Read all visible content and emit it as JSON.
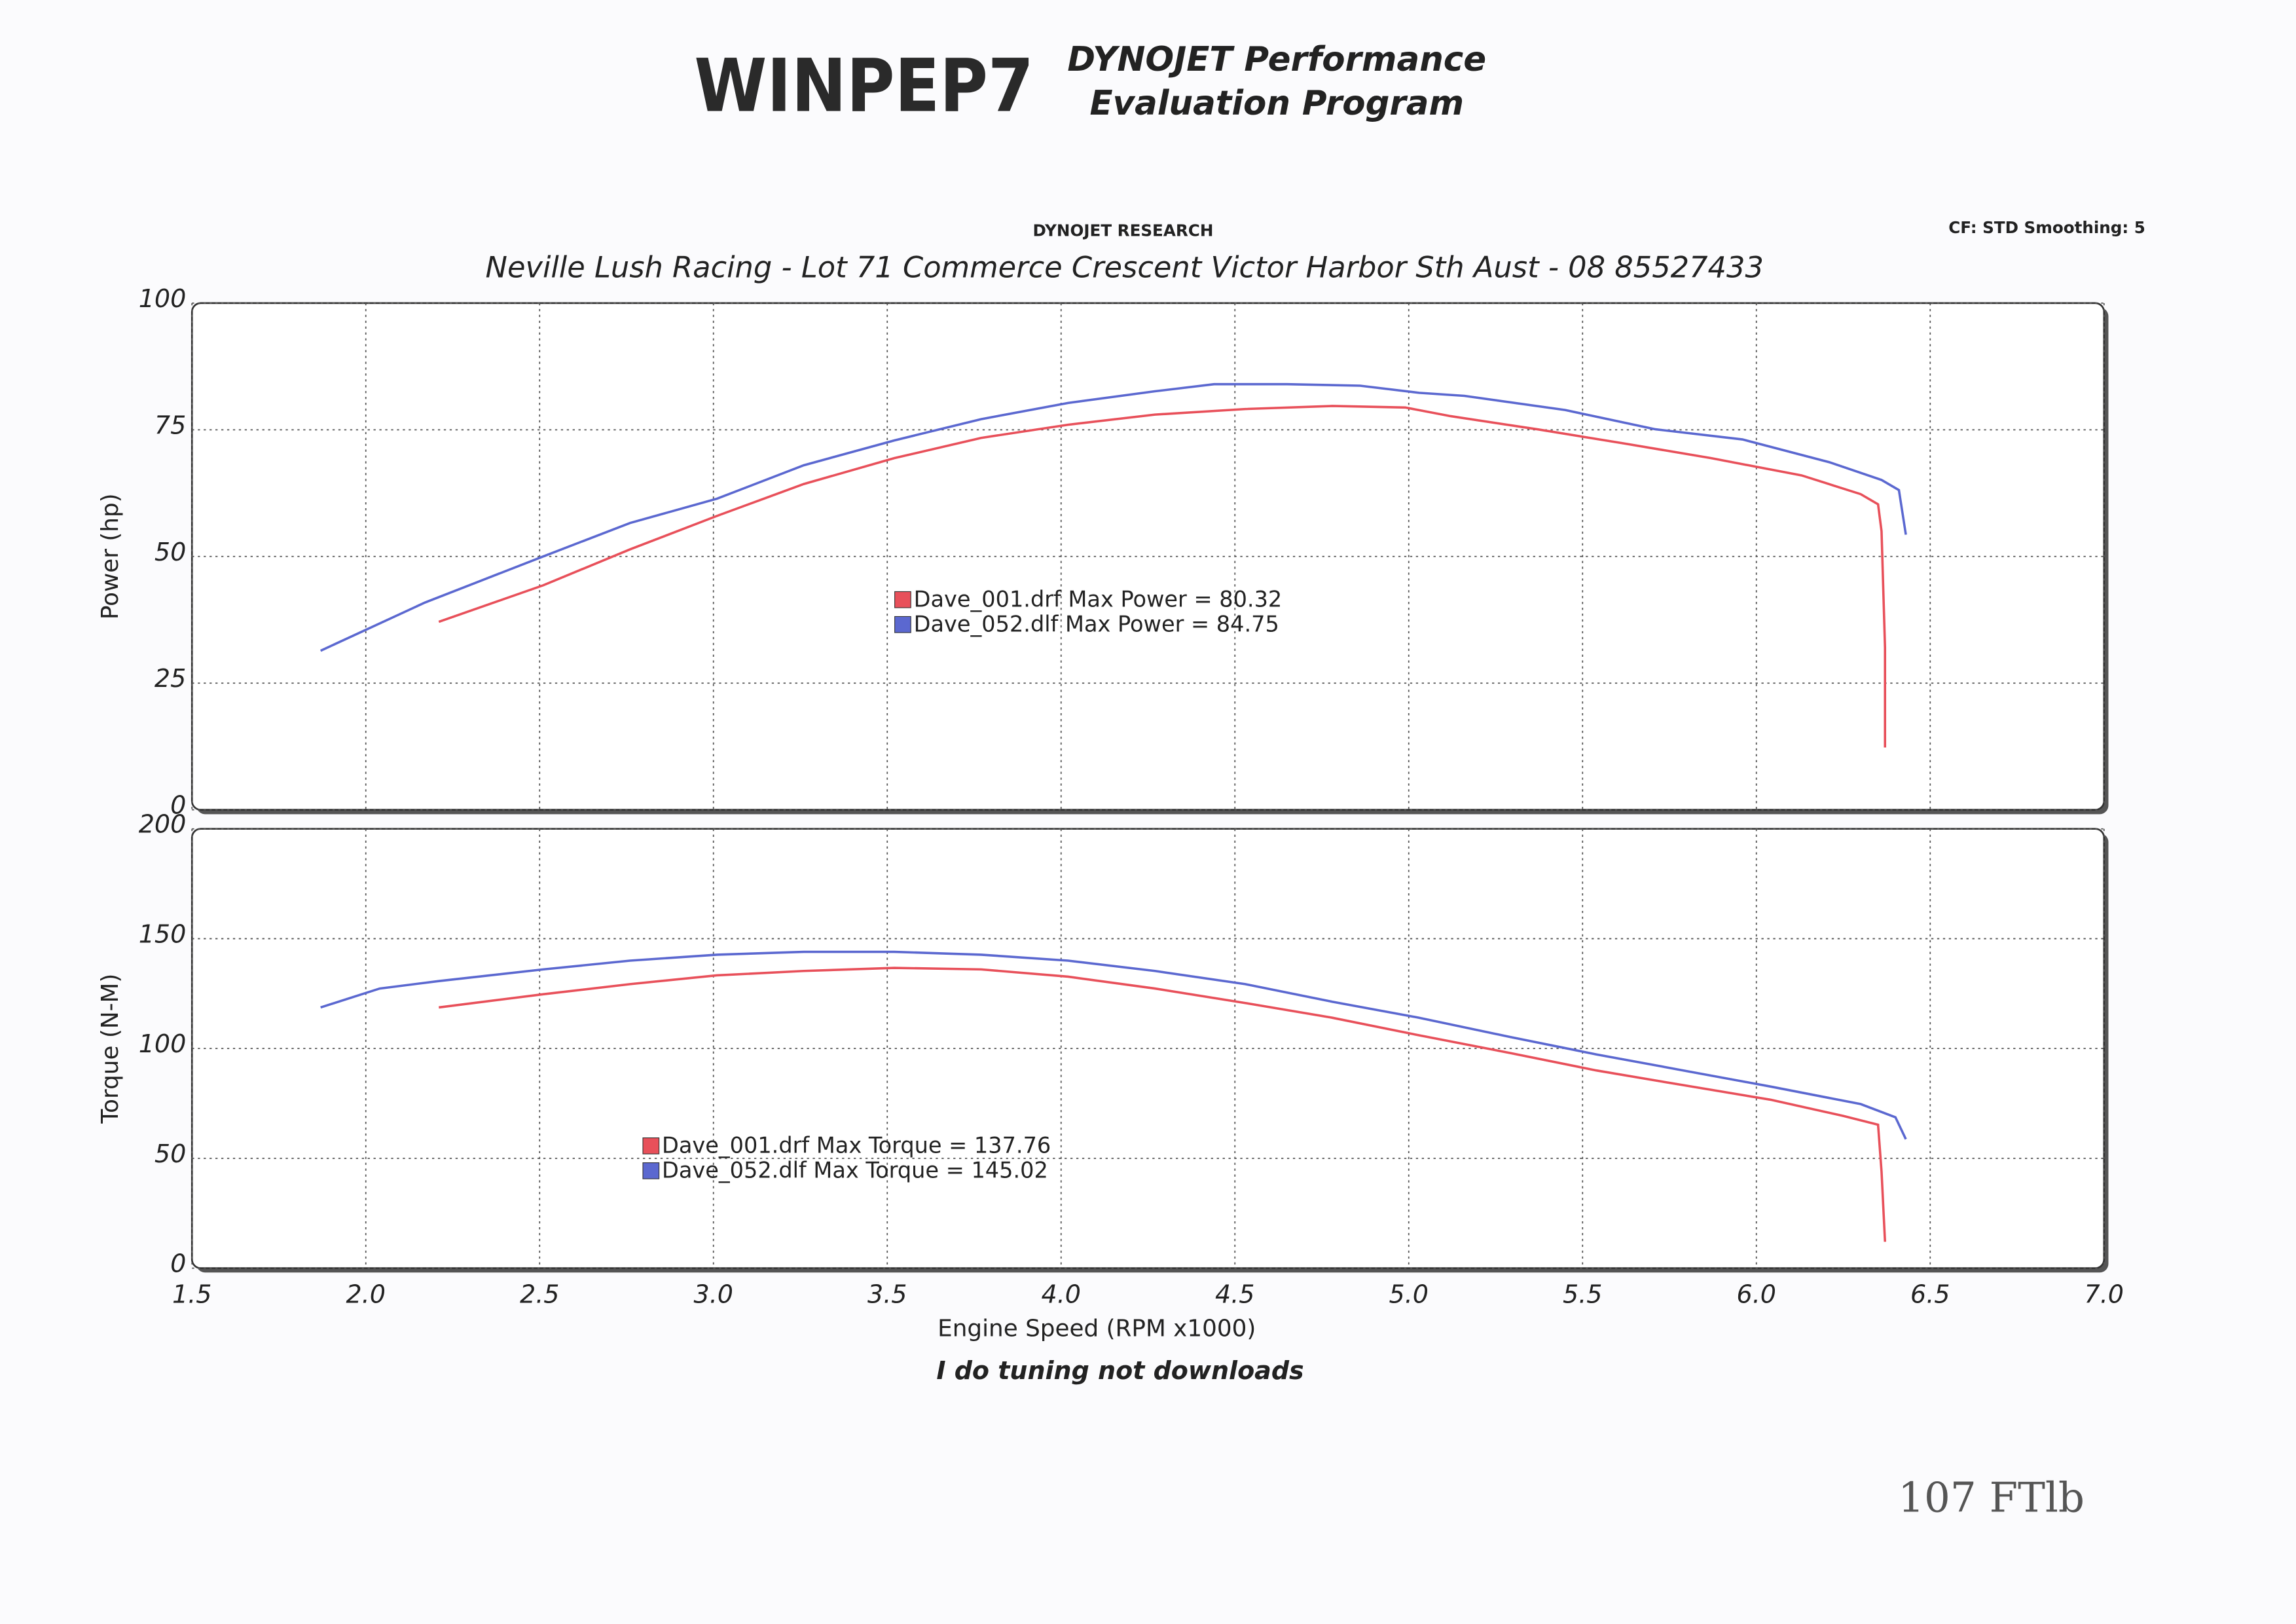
{
  "header": {
    "logo": "WINPEP7",
    "product_line1": "DYNOJET Performance",
    "product_line2": "Evaluation Program",
    "company": "DYNOJET RESEARCH",
    "settings": "CF: STD  Smoothing: 5",
    "address": "Neville Lush Racing  - Lot 71 Commerce Crescent  Victor Harbor Sth Aust  - 08 85527433",
    "footer": "I do tuning not downloads",
    "handwritten": "107 FTlb"
  },
  "chart_data": [
    {
      "type": "line",
      "ylabel": "Power (hp)",
      "grid": true,
      "legend_position": "center",
      "xlim": [
        1.5,
        7
      ],
      "xticks": [
        1.5,
        2,
        2.5,
        3,
        3.5,
        4,
        4.5,
        5,
        5.5,
        6,
        6.5,
        7
      ],
      "ylim": [
        0,
        100
      ],
      "yticks": [
        0,
        25,
        50,
        75,
        100
      ],
      "series": [
        {
          "name": "Dave_001.drf Max Power = 80.32",
          "color": "#e8505a",
          "x": [
            2.21,
            2.51,
            2.76,
            3.01,
            3.26,
            3.52,
            3.77,
            4.02,
            4.27,
            4.53,
            4.78,
            4.99,
            5.12,
            5.37,
            5.62,
            5.87,
            6.13,
            6.3,
            6.35,
            6.36,
            6.37,
            6.37
          ],
          "values": [
            37.1,
            44.3,
            51.4,
            58,
            64.3,
            69.4,
            73.4,
            76,
            78,
            79.1,
            79.7,
            79.4,
            77.7,
            75.1,
            72.3,
            69.4,
            66,
            62.3,
            60.3,
            55,
            32,
            12.3
          ]
        },
        {
          "name": "Dave_052.dlf Max Power = 84.75",
          "color": "#5b68d0",
          "x": [
            1.87,
            2.17,
            2.51,
            2.76,
            3.01,
            3.26,
            3.52,
            3.77,
            4.02,
            4.27,
            4.44,
            4.65,
            4.86,
            5.03,
            5.16,
            5.45,
            5.71,
            5.96,
            6.21,
            6.36,
            6.41,
            6.43
          ],
          "values": [
            31.4,
            40.9,
            50,
            56.6,
            61.4,
            68,
            72.9,
            77.1,
            80.3,
            82.6,
            84,
            84,
            83.7,
            82.3,
            81.7,
            78.9,
            75.1,
            73.1,
            68.6,
            65.1,
            63.1,
            54.3
          ]
        }
      ]
    },
    {
      "type": "line",
      "ylabel": "Torque (N-M)",
      "xlabel": "Engine Speed (RPM x1000)",
      "grid": true,
      "legend_position": "lower left",
      "xlim": [
        1.5,
        7
      ],
      "xticks": [
        1.5,
        {
          "value": 2,
          "label": "2.0"
        },
        2.5,
        {
          "value": 3,
          "label": "3.0"
        },
        3.5,
        {
          "value": 4,
          "label": "4.0"
        },
        4.5,
        {
          "value": 5,
          "label": "5.0"
        },
        5.5,
        {
          "value": 6,
          "label": "6.0"
        },
        6.5,
        {
          "value": 7,
          "label": "7.0"
        }
      ],
      "ylim": [
        0,
        200
      ],
      "yticks": [
        0,
        50,
        100,
        150,
        200
      ],
      "series": [
        {
          "name": "Dave_001.drf Max Torque = 137.76",
          "color": "#e8505a",
          "x": [
            2.21,
            2.51,
            2.76,
            3.01,
            3.26,
            3.52,
            3.77,
            4.02,
            4.27,
            4.53,
            4.78,
            5.03,
            5.29,
            5.54,
            5.79,
            6.04,
            6.25,
            6.35,
            6.36,
            6.37
          ],
          "values": [
            118.7,
            124.7,
            129.3,
            133.3,
            135.3,
            136.7,
            136,
            132.7,
            127.3,
            120.7,
            114,
            106,
            98,
            90,
            83.3,
            76.7,
            69.3,
            65.3,
            44,
            12
          ]
        },
        {
          "name": "Dave_052.dlf Max Torque = 145.02",
          "color": "#5b68d0",
          "x": [
            1.87,
            2.04,
            2.21,
            2.51,
            2.76,
            3.01,
            3.26,
            3.52,
            3.77,
            4.02,
            4.27,
            4.53,
            4.78,
            5.03,
            5.29,
            5.54,
            5.79,
            6.04,
            6.3,
            6.4,
            6.43
          ],
          "values": [
            118.7,
            127.3,
            130.7,
            136,
            140,
            142.7,
            144,
            144,
            142.7,
            140,
            135.3,
            129.3,
            121.3,
            114,
            105.3,
            97.3,
            90,
            82.7,
            74.7,
            68.7,
            58.7
          ]
        }
      ]
    }
  ]
}
